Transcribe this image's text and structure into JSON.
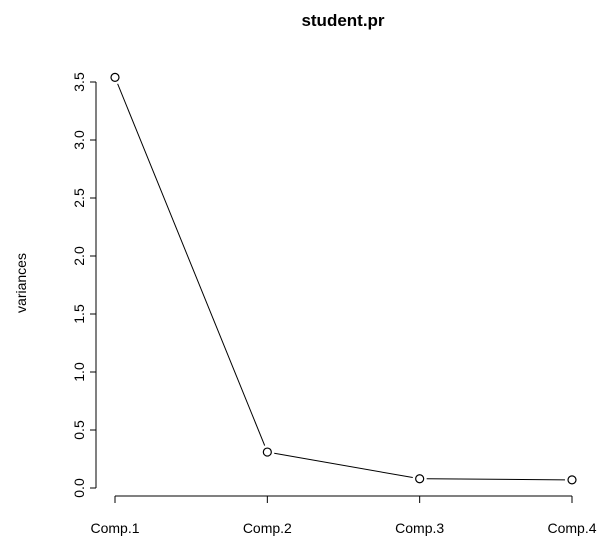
{
  "chart_data": {
    "type": "line",
    "title": "student.pr",
    "xlabel": "",
    "ylabel": "variances",
    "categories": [
      "Comp.1",
      "Comp.2",
      "Comp.3",
      "Comp.4"
    ],
    "series": [
      {
        "values": [
          3.54,
          0.31,
          0.08,
          0.07
        ]
      }
    ],
    "ylim": [
      0,
      3.5
    ],
    "yticks": [
      "0.0",
      "0.5",
      "1.0",
      "1.5",
      "2.0",
      "2.5",
      "3.0",
      "3.5"
    ],
    "grid": false,
    "marker": "open-circle"
  }
}
